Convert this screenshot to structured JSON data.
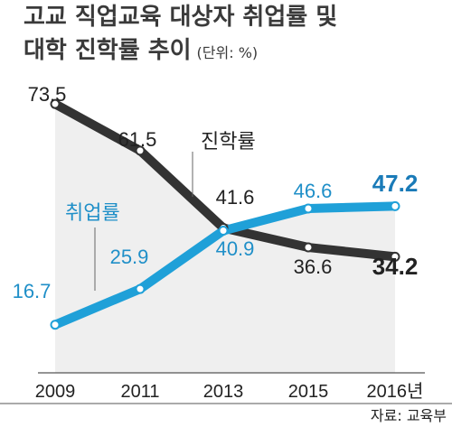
{
  "title_line1": "고교 직업교육 대상자 취업률 및",
  "title_line2": "대학 진학률 추이",
  "unit": "(단위: %)",
  "source": "자료: 교육부",
  "chart_data": {
    "type": "line",
    "x": [
      "2009",
      "2011",
      "2013",
      "2015",
      "2016년"
    ],
    "series": [
      {
        "name": "진학률",
        "values": [
          73.5,
          61.5,
          41.6,
          36.6,
          34.2
        ],
        "labels": [
          "73.5",
          "61.5",
          "41.6",
          "36.6",
          "34.2"
        ],
        "color": "#333333"
      },
      {
        "name": "취업률",
        "values": [
          16.7,
          25.9,
          40.9,
          46.6,
          47.2
        ],
        "labels": [
          "16.7",
          "25.9",
          "40.9",
          "46.6",
          "47.2"
        ],
        "color": "#1fa0d8"
      }
    ],
    "ylim": [
      0,
      80
    ],
    "grid": false,
    "legend": "inline"
  },
  "colors": {
    "shade": "#efefef",
    "label_blue": "#1f8fc8",
    "emphasis_blue": "#1a7bb8",
    "axis": "#555555"
  }
}
